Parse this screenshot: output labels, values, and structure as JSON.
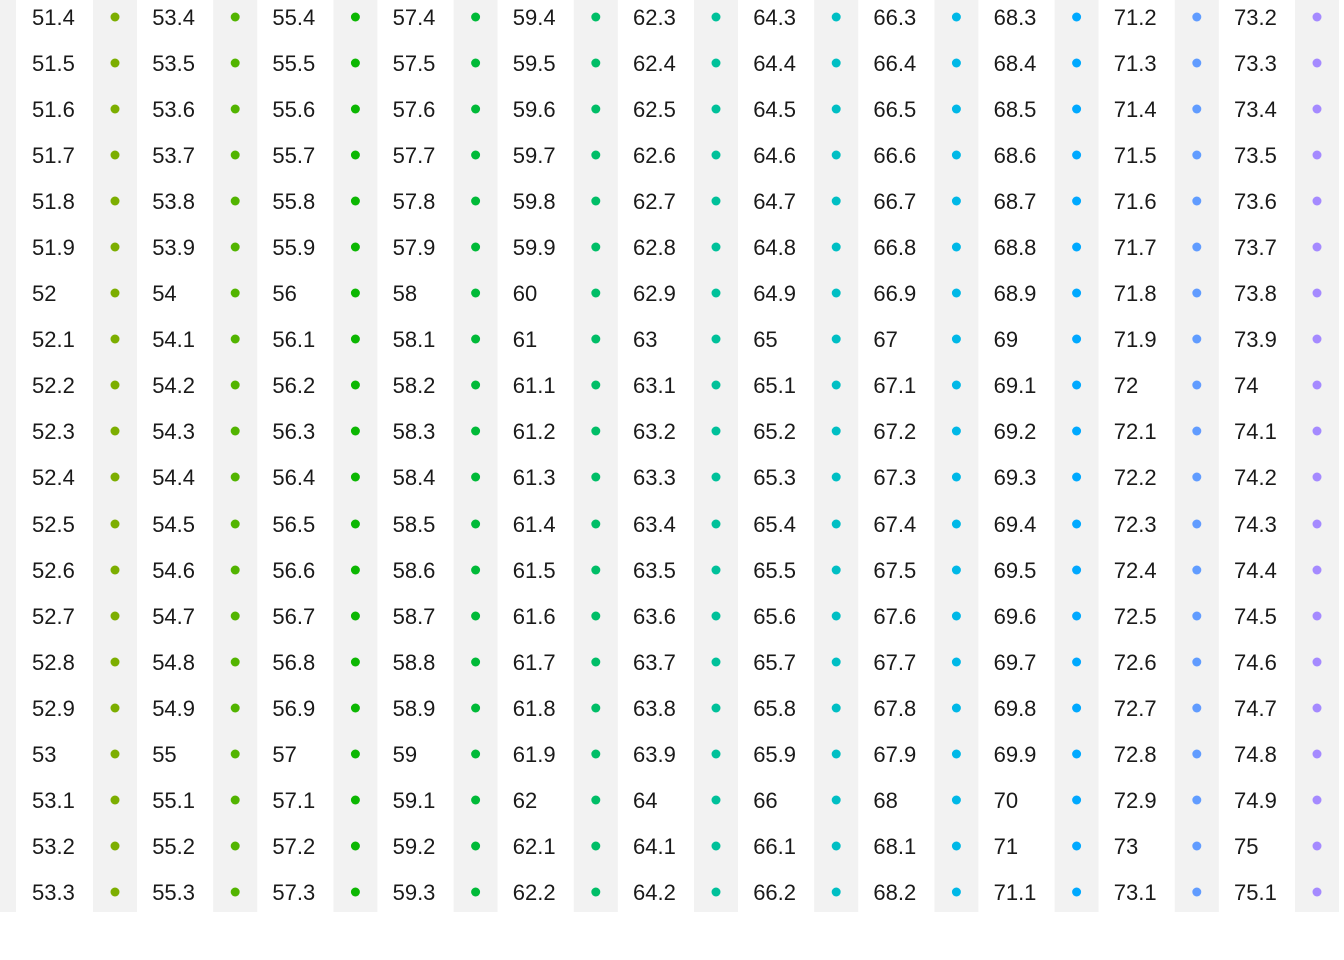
{
  "chart_data": {
    "type": "table",
    "grid": false,
    "columns": [
      {
        "color": "#7cae00",
        "values": [
          "51.4",
          "51.5",
          "51.6",
          "51.7",
          "51.8",
          "51.9",
          "52",
          "52.1",
          "52.2",
          "52.3",
          "52.4",
          "52.5",
          "52.6",
          "52.7",
          "52.8",
          "52.9",
          "53",
          "53.1",
          "53.2",
          "53.3"
        ]
      },
      {
        "color": "#52b400",
        "values": [
          "53.4",
          "53.5",
          "53.6",
          "53.7",
          "53.8",
          "53.9",
          "54",
          "54.1",
          "54.2",
          "54.3",
          "54.4",
          "54.5",
          "54.6",
          "54.7",
          "54.8",
          "54.9",
          "55",
          "55.1",
          "55.2",
          "55.3"
        ]
      },
      {
        "color": "#0cb702",
        "values": [
          "55.4",
          "55.5",
          "55.6",
          "55.7",
          "55.8",
          "55.9",
          "56",
          "56.1",
          "56.2",
          "56.3",
          "56.4",
          "56.5",
          "56.6",
          "56.7",
          "56.8",
          "56.9",
          "57",
          "57.1",
          "57.2",
          "57.3"
        ]
      },
      {
        "color": "#00ba38",
        "values": [
          "57.4",
          "57.5",
          "57.6",
          "57.7",
          "57.8",
          "57.9",
          "58",
          "58.1",
          "58.2",
          "58.3",
          "58.4",
          "58.5",
          "58.6",
          "58.7",
          "58.8",
          "58.9",
          "59",
          "59.1",
          "59.2",
          "59.3"
        ]
      },
      {
        "color": "#00be67",
        "values": [
          "59.4",
          "59.5",
          "59.6",
          "59.7",
          "59.8",
          "59.9",
          "60",
          "61",
          "61.1",
          "61.2",
          "61.3",
          "61.4",
          "61.5",
          "61.6",
          "61.7",
          "61.8",
          "61.9",
          "62",
          "62.1",
          "62.2"
        ]
      },
      {
        "color": "#00c19a",
        "values": [
          "62.3",
          "62.4",
          "62.5",
          "62.6",
          "62.7",
          "62.8",
          "62.9",
          "63",
          "63.1",
          "63.2",
          "63.3",
          "63.4",
          "63.5",
          "63.6",
          "63.7",
          "63.8",
          "63.9",
          "64",
          "64.1",
          "64.2"
        ]
      },
      {
        "color": "#00bfc4",
        "values": [
          "64.3",
          "64.4",
          "64.5",
          "64.6",
          "64.7",
          "64.8",
          "64.9",
          "65",
          "65.1",
          "65.2",
          "65.3",
          "65.4",
          "65.5",
          "65.6",
          "65.7",
          "65.8",
          "65.9",
          "66",
          "66.1",
          "66.2"
        ]
      },
      {
        "color": "#00b8e7",
        "values": [
          "66.3",
          "66.4",
          "66.5",
          "66.6",
          "66.7",
          "66.8",
          "66.9",
          "67",
          "67.1",
          "67.2",
          "67.3",
          "67.4",
          "67.5",
          "67.6",
          "67.7",
          "67.8",
          "67.9",
          "68",
          "68.1",
          "68.2"
        ]
      },
      {
        "color": "#00a9ff",
        "values": [
          "68.3",
          "68.4",
          "68.5",
          "68.6",
          "68.7",
          "68.8",
          "68.9",
          "69",
          "69.1",
          "69.2",
          "69.3",
          "69.4",
          "69.5",
          "69.6",
          "69.7",
          "69.8",
          "69.9",
          "70",
          "71",
          "71.1"
        ]
      },
      {
        "color": "#619cff",
        "values": [
          "71.2",
          "71.3",
          "71.4",
          "71.5",
          "71.6",
          "71.7",
          "71.8",
          "71.9",
          "72",
          "72.1",
          "72.2",
          "72.3",
          "72.4",
          "72.5",
          "72.6",
          "72.7",
          "72.8",
          "72.9",
          "73",
          "73.1"
        ]
      },
      {
        "color": "#a58aff",
        "values": [
          "73.2",
          "73.3",
          "73.4",
          "73.5",
          "73.6",
          "73.7",
          "73.8",
          "73.9",
          "74",
          "74.1",
          "74.2",
          "74.3",
          "74.4",
          "74.5",
          "74.6",
          "74.7",
          "74.8",
          "74.9",
          "75",
          "75.1"
        ]
      },
      {
        "color": "#df70f8",
        "values": []
      }
    ]
  }
}
